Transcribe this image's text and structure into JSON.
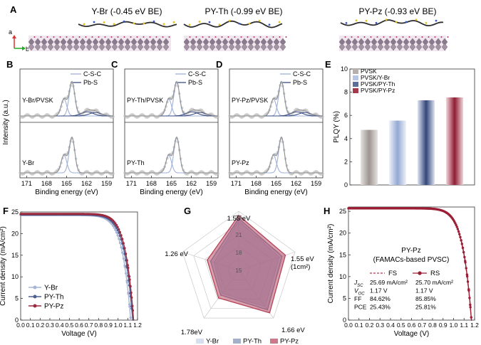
{
  "panelA": {
    "letter": "A",
    "axis_a": "a",
    "axis_b": "b",
    "titles": [
      "Y-Br (-0.45 eV BE)",
      "PY-Th (-0.99 eV BE)",
      "PY-Pz (-0.93 eV BE)"
    ]
  },
  "xps": {
    "ylabel": "Intensity (a.u.)",
    "xlabel": "Binding energy (eV)",
    "xticks": [
      "171",
      "168",
      "165",
      "162",
      "159"
    ],
    "legend": [
      "C-S-C",
      "Pb-S"
    ],
    "panels": [
      {
        "letter": "B",
        "top": "Y-Br/PVSK",
        "bottom": "Y-Br"
      },
      {
        "letter": "C",
        "top": "PY-Th/PVSK",
        "bottom": "PY-Th"
      },
      {
        "letter": "D",
        "top": "PY-Pz/PVSK",
        "bottom": "PY-Pz"
      }
    ]
  },
  "chart_data": [
    {
      "panel": "E",
      "type": "bar",
      "ylabel": "PLQY (%)",
      "ylim": [
        0,
        10
      ],
      "yticks": [
        "0",
        "2",
        "4",
        "6",
        "8",
        "10"
      ],
      "categories": [
        "PVSK",
        "PVSK/Y-Br",
        "PVSK/PY-Th",
        "PVSK/PY-Pz"
      ],
      "values": [
        4.75,
        5.55,
        7.3,
        7.55
      ],
      "colors": [
        "#b8b0ac",
        "#b7c6e2",
        "#5b6f98",
        "#a43a4d"
      ]
    },
    {
      "panel": "F",
      "type": "line",
      "xlabel": "Voltage (V)",
      "ylabel": "Current density (mA/cm²)",
      "xlim": [
        0,
        1.2
      ],
      "ylim": [
        0,
        25
      ],
      "xticks": [
        "0.0",
        "0.1",
        "0.2",
        "0.3",
        "0.4",
        "0.5",
        "0.6",
        "0.7",
        "0.8",
        "0.9",
        "1.0",
        "1.1",
        "1.2"
      ],
      "yticks": [
        "0",
        "5",
        "10",
        "15",
        "20",
        "25"
      ],
      "series": [
        {
          "name": "Y-Br",
          "jsc": 24.3,
          "voc": 1.13,
          "n": 3.2,
          "color": "#a6b5d6"
        },
        {
          "name": "PY-Th",
          "jsc": 24.4,
          "voc": 1.15,
          "n": 3.0,
          "color": "#4e5f92"
        },
        {
          "name": "PY-Pz",
          "jsc": 24.55,
          "voc": 1.16,
          "n": 2.8,
          "color": "#9c2a3e"
        }
      ]
    },
    {
      "panel": "G",
      "type": "radar",
      "axes": [
        "1.55 eV",
        "1.55 eV\n(1cm²)",
        "1.66 eV",
        "1.78eV",
        "1.26 eV"
      ],
      "rmin": 15,
      "rmax": 25,
      "rings": [
        "15",
        "18",
        "21",
        "24"
      ],
      "series": [
        {
          "name": "Y-Br",
          "values": [
            23.4,
            22.2,
            22.6,
            19.8,
            19.4
          ],
          "color": "#c6d0e8"
        },
        {
          "name": "PY-Th",
          "values": [
            23.8,
            22.7,
            23.3,
            20.2,
            20.0
          ],
          "color": "#7d8db6"
        },
        {
          "name": "PY-Pz",
          "values": [
            24.3,
            23.3,
            23.9,
            20.8,
            20.6
          ],
          "color": "#b6425a"
        }
      ]
    },
    {
      "panel": "H",
      "type": "line",
      "title": "PY-Pz",
      "subtitle": "(FAMACs-based PVSC)",
      "xlabel": "Voltage (V)",
      "ylabel": "Current density (mA/cm²)",
      "xlim": [
        0,
        1.2
      ],
      "ylim": [
        0,
        26
      ],
      "xticks": [
        "0.0",
        "0.1",
        "0.2",
        "0.3",
        "0.4",
        "0.5",
        "0.6",
        "0.7",
        "0.8",
        "0.9",
        "1.0",
        "1.1",
        "1.2"
      ],
      "yticks": [
        "0",
        "5",
        "10",
        "15",
        "20",
        "25"
      ],
      "series": [
        {
          "name": "FS",
          "jsc": 25.69,
          "voc": 1.17,
          "n": 2.6,
          "color": "#c0304a"
        },
        {
          "name": "RS",
          "jsc": 25.7,
          "voc": 1.17,
          "n": 2.5,
          "color": "#9c1e35"
        }
      ],
      "table": {
        "rows": [
          {
            "label": "JSC",
            "fs": "25.69 mA/cm²",
            "rs": "25.70 mA/cm²"
          },
          {
            "label": "VOC",
            "fs": "1.17 V",
            "rs": "1.17 V"
          },
          {
            "label": "FF",
            "fs": "84.62%",
            "rs": "85.85%"
          },
          {
            "label": "PCE",
            "fs": "25.43%",
            "rs": "25.81%"
          }
        ]
      }
    }
  ],
  "colors": {
    "csc": "#9fb0d8",
    "pbs": "#3d4f86",
    "data": "#c2c2c2",
    "fit": "#8f8f8f"
  }
}
